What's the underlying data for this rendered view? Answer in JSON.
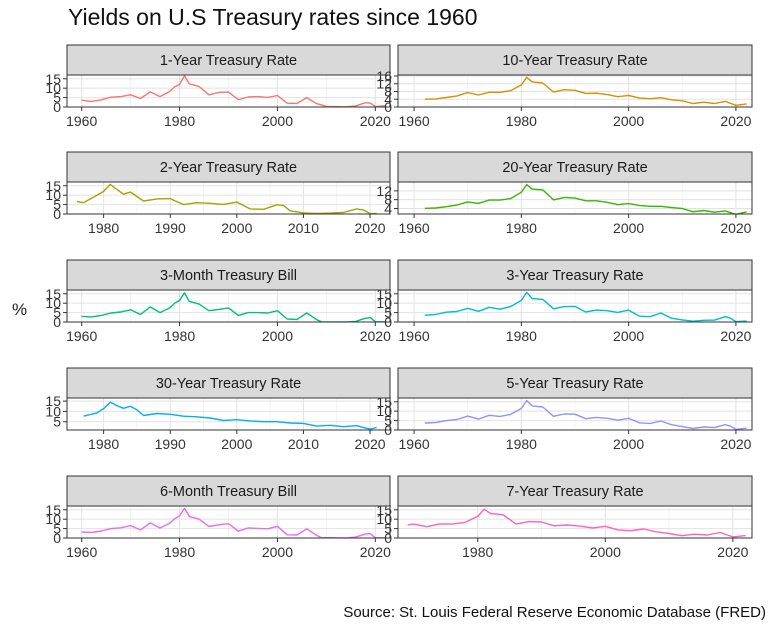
{
  "title": "Yields on U.S Treasury rates since 1960",
  "ylabel": "%",
  "source": "Source: St. Louis Federal Reserve Economic Database (FRED)",
  "chart_data": [
    {
      "type": "line",
      "title": "1-Year Treasury Rate",
      "color": "#F8766D",
      "x_ticks": [
        1960,
        1980,
        2000,
        2020
      ],
      "xlim": [
        1957,
        2023
      ],
      "y_ticks": [
        0,
        5,
        10,
        15
      ],
      "ylim": [
        0,
        17
      ],
      "series": [
        {
          "x": [
            1960,
            1962,
            1964,
            1966,
            1968,
            1970,
            1972,
            1974,
            1976,
            1978,
            1979,
            1980,
            1981,
            1982,
            1984,
            1986,
            1988,
            1990,
            1992,
            1994,
            1996,
            1998,
            2000,
            2002,
            2004,
            2006,
            2008,
            2010,
            2014,
            2016,
            2018,
            2019,
            2020,
            2022
          ],
          "y": [
            3.6,
            3.0,
            3.8,
            5.2,
            5.5,
            6.5,
            4.5,
            8.0,
            5.5,
            8.3,
            10.7,
            12.0,
            16.5,
            12.3,
            10.9,
            6.5,
            7.7,
            7.9,
            3.9,
            5.3,
            5.5,
            5.1,
            6.1,
            2.0,
            1.9,
            5.0,
            1.8,
            0.3,
            0.1,
            0.6,
            2.3,
            2.0,
            0.2,
            0.7
          ]
        }
      ]
    },
    {
      "type": "line",
      "title": "10-Year Treasury Rate",
      "color": "#D89000",
      "x_ticks": [
        1960,
        1980,
        2000,
        2020
      ],
      "xlim": [
        1957,
        2023
      ],
      "y_ticks": [
        0,
        4,
        8,
        12,
        16
      ],
      "ylim": [
        0,
        16.5
      ],
      "series": [
        {
          "x": [
            1962,
            1964,
            1966,
            1968,
            1970,
            1972,
            1974,
            1976,
            1978,
            1980,
            1981,
            1982,
            1984,
            1986,
            1988,
            1990,
            1992,
            1994,
            1996,
            1998,
            2000,
            2002,
            2004,
            2006,
            2008,
            2010,
            2012,
            2014,
            2016,
            2018,
            2020,
            2022
          ],
          "y": [
            4.0,
            4.2,
            4.9,
            5.7,
            7.4,
            6.2,
            7.6,
            7.6,
            8.4,
            11.4,
            15.3,
            13.0,
            12.4,
            7.7,
            8.9,
            8.6,
            7.0,
            7.1,
            6.4,
            5.3,
            6.0,
            4.6,
            4.3,
            4.8,
            3.7,
            3.2,
            1.8,
            2.5,
            1.8,
            2.9,
            0.9,
            1.6
          ]
        }
      ]
    },
    {
      "type": "line",
      "title": "2-Year Treasury Rate",
      "color": "#A3A500",
      "x_ticks": [
        1980,
        1990,
        2000,
        2010,
        2020
      ],
      "xlim": [
        1974.5,
        2023
      ],
      "y_ticks": [
        0,
        5,
        10,
        15
      ],
      "ylim": [
        0,
        17
      ],
      "series": [
        {
          "x": [
            1976,
            1977,
            1978,
            1979,
            1980,
            1981,
            1982,
            1983,
            1984,
            1985,
            1986,
            1988,
            1990,
            1992,
            1994,
            1996,
            1998,
            2000,
            2002,
            2004,
            2006,
            2007,
            2008,
            2010,
            2012,
            2014,
            2016,
            2018,
            2019,
            2020,
            2021
          ],
          "y": [
            6.6,
            6.0,
            8.0,
            10.0,
            12.0,
            15.7,
            13.0,
            10.5,
            11.7,
            9.3,
            6.9,
            8.0,
            8.2,
            5.0,
            6.0,
            5.7,
            5.1,
            6.3,
            2.7,
            2.5,
            4.9,
            4.6,
            1.7,
            0.6,
            0.3,
            0.5,
            0.8,
            2.7,
            2.2,
            0.2,
            0.3
          ]
        }
      ]
    },
    {
      "type": "line",
      "title": "20-Year Treasury Rate",
      "color": "#39B600",
      "x_ticks": [
        1960,
        1980,
        2000,
        2020
      ],
      "xlim": [
        1957,
        2023
      ],
      "y_ticks": [
        4,
        8,
        12
      ],
      "ylim": [
        1.5,
        16
      ],
      "series": [
        {
          "x": [
            1962,
            1964,
            1966,
            1968,
            1970,
            1972,
            1974,
            1976,
            1978,
            1980,
            1981,
            1982,
            1984,
            1986,
            1988,
            1990,
            1992,
            1994,
            1996,
            1998,
            2000,
            2002,
            2004,
            2006,
            2008,
            2010,
            2012,
            2014,
            2016,
            2018,
            2020,
            2022
          ],
          "y": [
            4.1,
            4.2,
            4.8,
            5.6,
            7.0,
            6.3,
            7.8,
            7.8,
            8.5,
            11.4,
            14.8,
            12.8,
            12.4,
            7.9,
            9.0,
            8.7,
            7.5,
            7.5,
            6.8,
            5.7,
            6.2,
            5.4,
            5.0,
            5.0,
            4.4,
            4.0,
            2.5,
            3.1,
            2.3,
            2.9,
            1.3,
            2.5
          ]
        }
      ]
    },
    {
      "type": "line",
      "title": "3-Month Treasury Bill",
      "color": "#00BF7D",
      "x_ticks": [
        1960,
        1980,
        2000,
        2020
      ],
      "xlim": [
        1957,
        2023
      ],
      "y_ticks": [
        0,
        5,
        10,
        15
      ],
      "ylim": [
        0,
        17
      ],
      "series": [
        {
          "x": [
            1960,
            1962,
            1964,
            1966,
            1968,
            1970,
            1972,
            1974,
            1976,
            1978,
            1979,
            1980,
            1981,
            1982,
            1984,
            1986,
            1988,
            1990,
            1992,
            1994,
            1996,
            1998,
            2000,
            2002,
            2004,
            2006,
            2008,
            2009,
            2014,
            2016,
            2018,
            2019,
            2020,
            2022
          ],
          "y": [
            3.0,
            2.7,
            3.5,
            4.8,
            5.3,
            6.5,
            4.0,
            8.0,
            5.0,
            7.5,
            10.0,
            11.5,
            15.5,
            11.0,
            9.5,
            6.0,
            6.7,
            7.5,
            3.5,
            5.0,
            5.0,
            4.8,
            6.0,
            1.6,
            1.4,
            4.8,
            1.3,
            0.1,
            0.05,
            0.3,
            2.0,
            2.3,
            0.1,
            0.1
          ]
        }
      ]
    },
    {
      "type": "line",
      "title": "3-Year Treasury Rate",
      "color": "#00BFC4",
      "x_ticks": [
        1960,
        1980,
        2000,
        2020
      ],
      "xlim": [
        1957,
        2023
      ],
      "y_ticks": [
        0,
        5,
        10,
        15
      ],
      "ylim": [
        0,
        17
      ],
      "series": [
        {
          "x": [
            1962,
            1964,
            1966,
            1968,
            1970,
            1972,
            1974,
            1976,
            1978,
            1980,
            1981,
            1982,
            1984,
            1986,
            1988,
            1990,
            1992,
            1994,
            1996,
            1998,
            2000,
            2002,
            2004,
            2006,
            2008,
            2010,
            2012,
            2014,
            2016,
            2018,
            2019,
            2020,
            2022
          ],
          "y": [
            3.6,
            4.0,
            5.2,
            5.6,
            7.3,
            5.7,
            7.8,
            6.8,
            8.2,
            11.5,
            15.8,
            12.5,
            12.0,
            7.0,
            8.2,
            8.3,
            5.3,
            6.3,
            6.0,
            5.1,
            6.3,
            3.1,
            2.8,
            4.8,
            2.0,
            1.1,
            0.4,
            0.9,
            1.0,
            2.8,
            2.0,
            0.2,
            0.5
          ]
        }
      ]
    },
    {
      "type": "line",
      "title": "30-Year Treasury Rate",
      "color": "#00B0F6",
      "x_ticks": [
        1980,
        1990,
        2000,
        2010,
        2020
      ],
      "xlim": [
        1974.5,
        2023
      ],
      "y_ticks": [
        5,
        10,
        15
      ],
      "ylim": [
        1,
        16.5
      ],
      "series": [
        {
          "x": [
            1977,
            1978,
            1979,
            1980,
            1981,
            1982,
            1983,
            1984,
            1985,
            1986,
            1988,
            1990,
            1992,
            1994,
            1996,
            1998,
            2000,
            2002,
            2004,
            2006,
            2008,
            2010,
            2012,
            2014,
            2016,
            2018,
            2020,
            2021
          ],
          "y": [
            7.7,
            8.5,
            9.3,
            11.3,
            14.5,
            12.8,
            11.5,
            12.5,
            10.8,
            8.0,
            9.0,
            8.6,
            7.7,
            7.4,
            6.8,
            5.6,
            6.0,
            5.4,
            5.0,
            5.0,
            4.4,
            4.2,
            2.9,
            3.3,
            2.6,
            3.1,
            1.4,
            2.2
          ]
        }
      ]
    },
    {
      "type": "line",
      "title": "5-Year Treasury Rate",
      "color": "#9590FF",
      "x_ticks": [
        1960,
        1980,
        2000,
        2020
      ],
      "xlim": [
        1957,
        2023
      ],
      "y_ticks": [
        0,
        5,
        10,
        15
      ],
      "ylim": [
        0,
        17
      ],
      "series": [
        {
          "x": [
            1962,
            1964,
            1966,
            1968,
            1970,
            1972,
            1974,
            1976,
            1978,
            1980,
            1981,
            1982,
            1984,
            1986,
            1988,
            1990,
            1992,
            1994,
            1996,
            1998,
            2000,
            2002,
            2004,
            2006,
            2008,
            2010,
            2012,
            2014,
            2016,
            2018,
            2019,
            2020,
            2022
          ],
          "y": [
            3.7,
            4.0,
            5.0,
            5.6,
            7.4,
            5.8,
            7.8,
            7.2,
            8.3,
            11.5,
            15.6,
            12.8,
            12.2,
            7.3,
            8.5,
            8.4,
            6.0,
            6.7,
            6.2,
            5.2,
            6.2,
            3.8,
            3.5,
            4.8,
            2.8,
            1.8,
            0.8,
            1.6,
            1.3,
            2.8,
            2.0,
            0.3,
            1.0
          ]
        }
      ]
    },
    {
      "type": "line",
      "title": "6-Month Treasury Bill",
      "color": "#E76BF3",
      "x_ticks": [
        1960,
        1980,
        2000,
        2020
      ],
      "xlim": [
        1957,
        2023
      ],
      "y_ticks": [
        0,
        5,
        10,
        15
      ],
      "ylim": [
        0,
        17
      ],
      "series": [
        {
          "x": [
            1960,
            1962,
            1964,
            1966,
            1968,
            1970,
            1972,
            1974,
            1976,
            1978,
            1979,
            1980,
            1981,
            1982,
            1984,
            1986,
            1988,
            1990,
            1992,
            1994,
            1996,
            1998,
            2000,
            2002,
            2004,
            2006,
            2008,
            2009,
            2014,
            2016,
            2018,
            2019,
            2020,
            2022
          ],
          "y": [
            3.2,
            2.9,
            3.7,
            5.0,
            5.4,
            6.6,
            4.3,
            8.0,
            5.3,
            7.8,
            10.3,
            11.8,
            15.8,
            11.5,
            10.0,
            6.1,
            7.0,
            7.6,
            3.6,
            5.3,
            5.1,
            4.9,
            6.2,
            1.7,
            1.6,
            4.9,
            1.4,
            0.2,
            0.05,
            0.5,
            2.2,
            2.3,
            0.1,
            0.1
          ]
        }
      ]
    },
    {
      "type": "line",
      "title": "7-Year Treasury Rate",
      "color": "#FF62BC",
      "x_ticks": [
        1980,
        2000,
        2020
      ],
      "xlim": [
        1967.5,
        2023
      ],
      "y_ticks": [
        0,
        5,
        10,
        15
      ],
      "ylim": [
        0,
        17
      ],
      "series": [
        {
          "x": [
            1969,
            1970,
            1972,
            1974,
            1976,
            1978,
            1980,
            1981,
            1982,
            1984,
            1986,
            1988,
            1990,
            1992,
            1994,
            1996,
            1998,
            2000,
            2002,
            2004,
            2006,
            2008,
            2010,
            2012,
            2014,
            2016,
            2018,
            2020,
            2022
          ],
          "y": [
            7.0,
            7.4,
            6.0,
            7.5,
            7.4,
            8.3,
            11.5,
            15.3,
            13.0,
            12.3,
            7.4,
            8.7,
            8.5,
            6.5,
            6.9,
            6.3,
            5.3,
            6.2,
            4.3,
            3.9,
            4.8,
            3.3,
            2.4,
            1.2,
            2.0,
            1.6,
            2.9,
            0.6,
            1.3
          ]
        }
      ]
    }
  ]
}
